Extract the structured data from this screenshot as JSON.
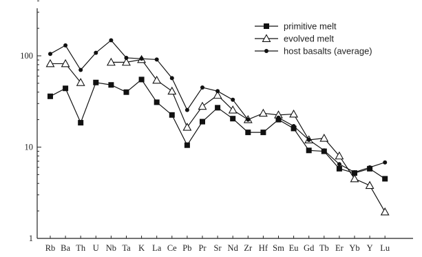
{
  "chart_data": {
    "type": "line",
    "title": "",
    "xlabel": "",
    "ylabel": "",
    "y_scale": "log",
    "ylim": [
      1,
      500
    ],
    "yticks": [
      1,
      10,
      100
    ],
    "ytick_labels": [
      "1",
      "10",
      "100"
    ],
    "grid": false,
    "legend_position": "top-right",
    "categories": [
      "Rb",
      "Ba",
      "Th",
      "U",
      "Nb",
      "Ta",
      "K",
      "La",
      "Ce",
      "Pb",
      "Pr",
      "Sr",
      "Nd",
      "Zr",
      "Hf",
      "Sm",
      "Eu",
      "Gd",
      "Tb",
      "Er",
      "Yb",
      "Y",
      "Lu"
    ],
    "series": [
      {
        "name": "primitive melt",
        "marker": "square",
        "color": "#111111",
        "values": [
          36,
          44,
          18.5,
          51,
          48,
          40,
          55,
          31,
          22.5,
          10.5,
          19,
          27,
          20.5,
          14.5,
          14.5,
          20,
          16,
          9.2,
          9,
          5.8,
          5.2,
          5.8,
          4.5
        ]
      },
      {
        "name": "evolved melt",
        "marker": "triangle-open",
        "color": "#111111",
        "values": [
          82,
          82,
          51,
          null,
          85,
          85,
          91,
          54,
          41,
          16.5,
          28,
          37,
          25.5,
          20,
          23.5,
          22.5,
          23,
          12,
          12.5,
          8,
          4.5,
          3.8,
          1.95
        ]
      },
      {
        "name": "host basalts (average)",
        "marker": "dot",
        "color": "#111111",
        "values": [
          105,
          130,
          70,
          108,
          148,
          95,
          93,
          91,
          57,
          25.5,
          45,
          41,
          33,
          20,
          null,
          21,
          17,
          12,
          9.2,
          6.5,
          5.3,
          6,
          6.8
        ]
      }
    ]
  }
}
